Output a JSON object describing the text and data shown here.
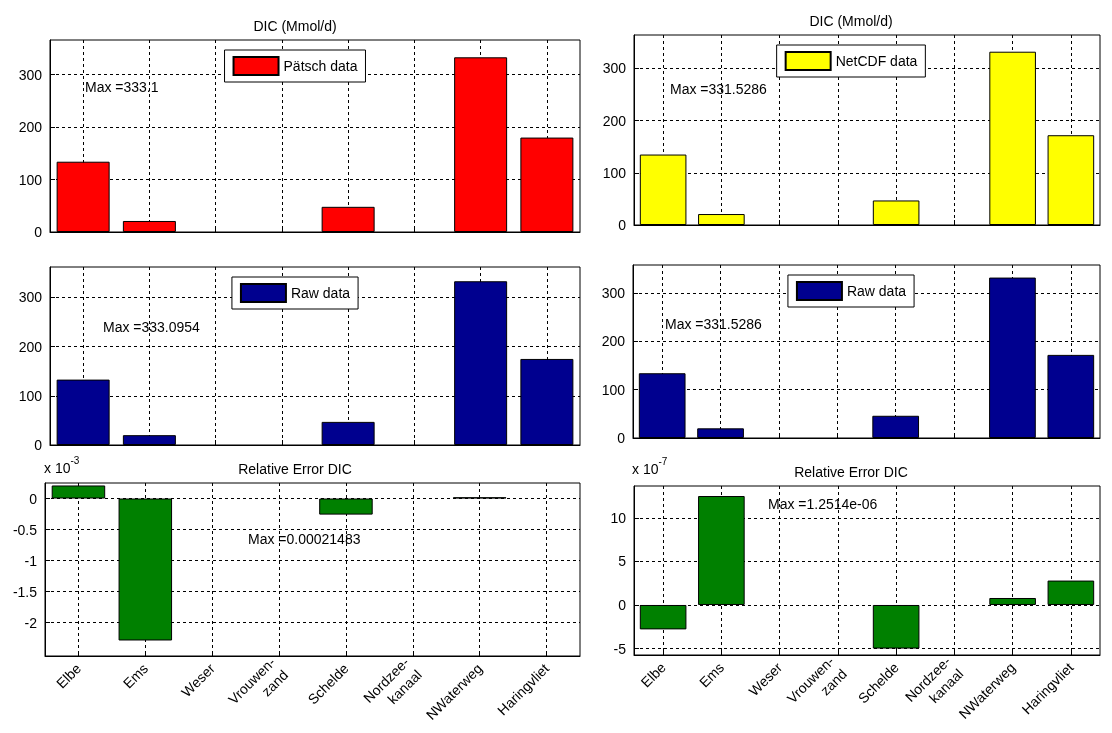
{
  "chart_data": [
    {
      "type": "bar",
      "title": "DIC (Mmol/d)",
      "categories": [
        null,
        null,
        null,
        null,
        null,
        null,
        null,
        null
      ],
      "series": [
        {
          "name": "Pätsch data",
          "color": "#ff0000",
          "values": [
            134,
            21,
            null,
            null,
            48,
            null,
            333,
            180
          ]
        }
      ],
      "ylim": [
        0,
        366
      ],
      "yticks": [
        0,
        100,
        200,
        300
      ],
      "grid": true,
      "legend": "top",
      "tick_labels": "y",
      "annotations": [
        "Max =333.1"
      ]
    },
    {
      "type": "bar",
      "title": "DIC (Mmol/d)",
      "categories": [
        null,
        null,
        null,
        null,
        null,
        null,
        null,
        null
      ],
      "series": [
        {
          "name": "NetCDF data",
          "color": "#ffff00",
          "values": [
            135,
            21,
            null,
            null,
            47,
            null,
            332,
            172
          ]
        }
      ],
      "ylim": [
        0,
        364
      ],
      "yticks": [
        0,
        100,
        200,
        300
      ],
      "grid": true,
      "legend": "top",
      "tick_labels": "y",
      "annotations": [
        "Max =331.5286"
      ]
    },
    {
      "type": "bar",
      "categories": [
        null,
        null,
        null,
        null,
        null,
        null,
        null,
        null
      ],
      "series": [
        {
          "name": "Raw data",
          "color": "#00008f",
          "values": [
            133,
            20,
            null,
            null,
            47,
            null,
            333,
            175
          ]
        }
      ],
      "ylim": [
        0,
        362
      ],
      "yticks": [
        0,
        100,
        200,
        300
      ],
      "grid": true,
      "legend": "top",
      "tick_labels": "y",
      "annotations": [
        "Max =333.0954"
      ]
    },
    {
      "type": "bar",
      "categories": [
        null,
        null,
        null,
        null,
        null,
        null,
        null,
        null
      ],
      "series": [
        {
          "name": "Raw data",
          "color": "#00008f",
          "values": [
            134,
            20,
            null,
            null,
            46,
            null,
            332,
            172
          ]
        }
      ],
      "ylim": [
        0,
        358
      ],
      "yticks": [
        0,
        100,
        200,
        300
      ],
      "grid": true,
      "legend": "top",
      "tick_labels": "y",
      "annotations": [
        "Max =331.5286"
      ]
    },
    {
      "type": "bar",
      "title": "Relative Error DIC",
      "categories": [
        "Elbe",
        "Ems",
        "Weser",
        "Vrouwen-\nzand",
        "Schelde",
        "Nordzee-\nkanaal",
        "NWaterweg",
        "Haringvliet"
      ],
      "series": [
        {
          "color": "#008000",
          "values": [
            0.21,
            -2.29,
            null,
            null,
            -0.26,
            null,
            0.02,
            null
          ]
        }
      ],
      "ylim": [
        -2.54,
        0.25
      ],
      "yticks": [
        -2,
        -1.5,
        -1,
        -0.5,
        0
      ],
      "grid": true,
      "annotations": [
        "x 10$^{-3}$",
        "Max =0.00021483"
      ]
    },
    {
      "type": "bar",
      "title": "Relative Error DIC",
      "categories": [
        "Elbe",
        "Ems",
        "Weser",
        "Vrouwen-\nzand",
        "Schelde",
        "Nordzee-\nkanaal",
        "NWaterweg",
        "Haringvliet"
      ],
      "series": [
        {
          "color": "#008000",
          "values": [
            -2.8,
            12.5,
            null,
            null,
            -5.0,
            null,
            0.8,
            2.8
          ]
        }
      ],
      "ylim": [
        -5.74,
        13.65
      ],
      "yticks": [
        -5,
        0,
        5,
        10
      ],
      "grid": true,
      "annotations": [
        "x 10$^{-7}$",
        "Max =1.2514e-06"
      ]
    }
  ]
}
